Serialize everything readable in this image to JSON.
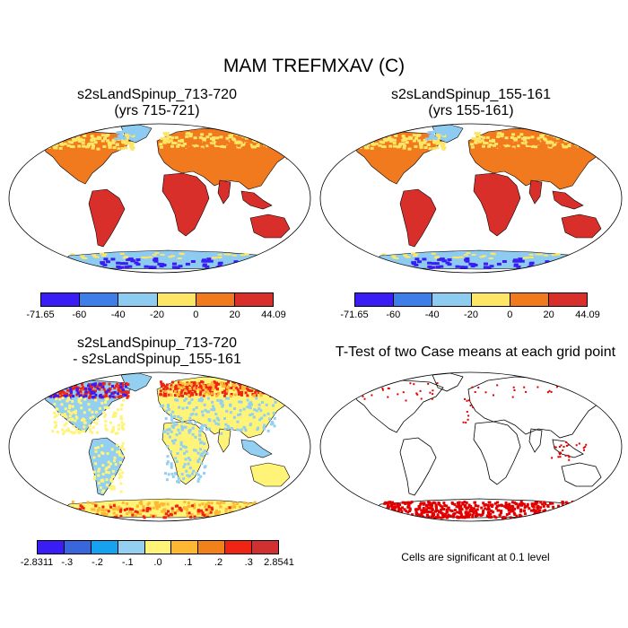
{
  "title": "MAM TREFMXAV (C)",
  "panels": [
    {
      "title1": "s2sLandSpinup_713-720",
      "title2": "(yrs 715-721)"
    },
    {
      "title1": "s2sLandSpinup_155-161",
      "title2": "(yrs 155-161)"
    },
    {
      "title1": "s2sLandSpinup_713-720",
      "title2": "- s2sLandSpinup_155-161"
    },
    {
      "title1": "T-Test of two Case means at each grid point",
      "title2": ""
    }
  ],
  "colorbar_abs": {
    "colors": [
      "#3a1df5",
      "#3d7ee8",
      "#8ecbf0",
      "#fde666",
      "#f27a1e",
      "#d92f2a"
    ],
    "labels": [
      "-71.65",
      "-60",
      "-40",
      "-20",
      "0",
      "20",
      "44.09"
    ]
  },
  "colorbar_diff": {
    "colors": [
      "#3a1df5",
      "#3a66dc",
      "#17a2f0",
      "#93cff0",
      "#fff477",
      "#fdb733",
      "#f3811a",
      "#f02414",
      "#d13030"
    ],
    "labels": [
      "-2.8311",
      "-.3",
      "-.2",
      "-.1",
      ".0",
      ".1",
      ".2",
      ".3",
      "2.8541"
    ]
  },
  "ttest_note": "Cells are significant at 0.1 level",
  "chart_data": [
    {
      "type": "heatmap",
      "title": "s2sLandSpinup_713-720 (yrs 715-721)",
      "projection": "Robinson",
      "color_levels": [
        -71.65,
        -60,
        -40,
        -20,
        0,
        20,
        44.09
      ]
    },
    {
      "type": "heatmap",
      "title": "s2sLandSpinup_155-161 (yrs 155-161)",
      "projection": "Robinson",
      "color_levels": [
        -71.65,
        -60,
        -40,
        -20,
        0,
        20,
        44.09
      ]
    },
    {
      "type": "heatmap",
      "title": "s2sLandSpinup_713-720 - s2sLandSpinup_155-161",
      "projection": "Robinson",
      "color_levels": [
        -2.8311,
        -0.3,
        -0.2,
        -0.1,
        0.0,
        0.1,
        0.2,
        0.3,
        2.8541
      ]
    },
    {
      "type": "heatmap",
      "title": "T-Test of two Case means at each grid point",
      "projection": "Robinson",
      "significance_level": 0.1
    }
  ]
}
